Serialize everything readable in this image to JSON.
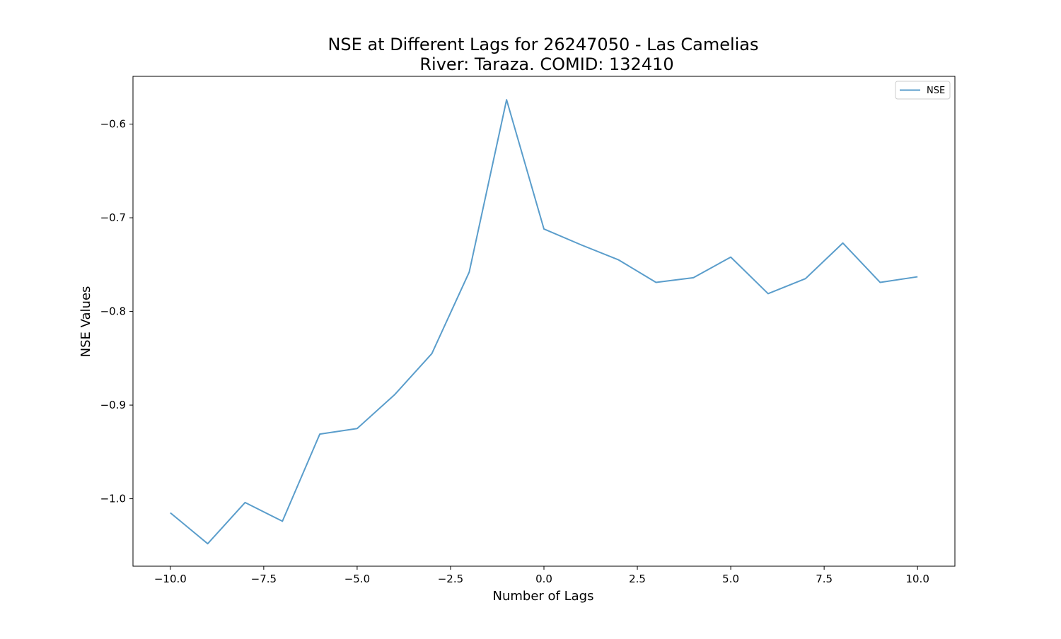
{
  "chart_data": {
    "type": "line",
    "title": "NSE at Different Lags for 26247050 - Las Camelias",
    "subtitle": "River: Taraza. COMID: 132410",
    "xlabel": "Number of Lags",
    "ylabel": "NSE Values",
    "xlim": [
      -11,
      11
    ],
    "ylim": [
      -1.072,
      -0.549
    ],
    "xticks": [
      -10.0,
      -7.5,
      -5.0,
      -2.5,
      0.0,
      2.5,
      5.0,
      7.5,
      10.0
    ],
    "xtick_labels": [
      "−10.0",
      "−7.5",
      "−5.0",
      "−2.5",
      "0.0",
      "2.5",
      "5.0",
      "7.5",
      "10.0"
    ],
    "yticks": [
      -1.0,
      -0.9,
      -0.8,
      -0.7,
      -0.6
    ],
    "ytick_labels": [
      "−1.0",
      "−0.9",
      "−0.8",
      "−0.7",
      "−0.6"
    ],
    "grid": false,
    "legend": "top-right",
    "series": [
      {
        "name": "NSE",
        "color": "#5a9dcb",
        "x": [
          -10,
          -9,
          -8,
          -7,
          -6,
          -5,
          -4,
          -3,
          -2,
          -1,
          0,
          1,
          2,
          3,
          4,
          5,
          6,
          7,
          8,
          9,
          10
        ],
        "y": [
          -1.015,
          -1.048,
          -1.004,
          -1.024,
          -0.931,
          -0.925,
          -0.889,
          -0.845,
          -0.758,
          -0.574,
          -0.712,
          -0.729,
          -0.745,
          -0.769,
          -0.764,
          -0.742,
          -0.781,
          -0.765,
          -0.727,
          -0.769,
          -0.763
        ]
      }
    ]
  }
}
